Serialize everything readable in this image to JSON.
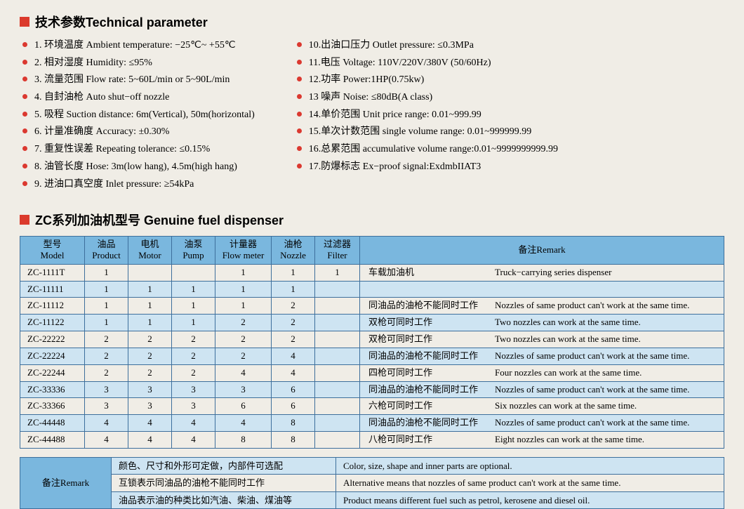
{
  "colors": {
    "accent_red": "#db3a2c",
    "header_blue": "#7ab7de",
    "row_alt_blue": "#cee4f2",
    "border_blue": "#3d6f9c",
    "page_bg": "#f0ede6"
  },
  "sections": {
    "tech_param_title": "技术参数Technical parameter",
    "dispenser_title": "ZC系列加油机型号 Genuine fuel dispenser"
  },
  "tech_params_left": [
    "1. 环境温度 Ambient temperature: −25℃~ +55℃",
    "2. 相对湿度 Humidity: ≤95%",
    "3. 流量范围 Flow rate: 5~60L/min or 5~90L/min",
    "4. 自封油枪 Auto shut−off nozzle",
    "5. 吸程 Suction distance: 6m(Vertical), 50m(horizontal)",
    "6. 计量准确度 Accuracy: ±0.30%",
    "7. 重复性误差 Repeating tolerance: ≤0.15%",
    "8. 油管长度 Hose: 3m(low hang), 4.5m(high hang)",
    "9. 进油口真空度 Inlet pressure: ≥54kPa"
  ],
  "tech_params_right": [
    "10.出油口压力 Outlet pressure: ≤0.3MPa",
    "11.电压 Voltage: 110V/220V/380V (50/60Hz)",
    "12.功率 Power:1HP(0.75kw)",
    "13 噪声 Noise: ≤80dB(A class)",
    "14.单价范围 Unit price range: 0.01~999.99",
    "15.单次计数范围 single volume range: 0.01~999999.99",
    "16.总累范围 accumulative volume range:0.01~9999999999.99",
    "17.防爆标志 Ex−proof signal:ExdmbIIAT3"
  ],
  "table_headers": [
    {
      "cn": "型号",
      "en": "Model"
    },
    {
      "cn": "油品",
      "en": "Product"
    },
    {
      "cn": "电机",
      "en": "Motor"
    },
    {
      "cn": "油泵",
      "en": "Pump"
    },
    {
      "cn": "计量器",
      "en": "Flow meter"
    },
    {
      "cn": "油枪",
      "en": "Nozzle"
    },
    {
      "cn": "过滤器",
      "en": "Filter"
    },
    {
      "cn": "",
      "en": "备注Remark"
    }
  ],
  "table_rows": [
    {
      "model": "ZC-1111T",
      "product": "1",
      "motor": "",
      "pump": "",
      "flow": "1",
      "nozzle": "1",
      "filter": "1",
      "remark_cn": "车载加油机",
      "remark_en": "Truck−carrying series dispenser"
    },
    {
      "model": "ZC-11111",
      "product": "1",
      "motor": "1",
      "pump": "1",
      "flow": "1",
      "nozzle": "1",
      "filter": "",
      "remark_cn": "",
      "remark_en": ""
    },
    {
      "model": "ZC-11112",
      "product": "1",
      "motor": "1",
      "pump": "1",
      "flow": "1",
      "nozzle": "2",
      "filter": "",
      "remark_cn": "同油品的油枪不能同时工作",
      "remark_en": "Nozzles of same product can't work at the same time."
    },
    {
      "model": "ZC-11122",
      "product": "1",
      "motor": "1",
      "pump": "1",
      "flow": "2",
      "nozzle": "2",
      "filter": "",
      "remark_cn": "双枪可同时工作",
      "remark_en": "Two nozzles can work at the same time."
    },
    {
      "model": "ZC-22222",
      "product": "2",
      "motor": "2",
      "pump": "2",
      "flow": "2",
      "nozzle": "2",
      "filter": "",
      "remark_cn": "双枪可同时工作",
      "remark_en": "Two nozzles can work at the same time."
    },
    {
      "model": "ZC-22224",
      "product": "2",
      "motor": "2",
      "pump": "2",
      "flow": "2",
      "nozzle": "4",
      "filter": "",
      "remark_cn": "同油品的油枪不能同时工作",
      "remark_en": "Nozzles of same product can't work at the same time."
    },
    {
      "model": "ZC-22244",
      "product": "2",
      "motor": "2",
      "pump": "2",
      "flow": "4",
      "nozzle": "4",
      "filter": "",
      "remark_cn": "四枪可同时工作",
      "remark_en": "Four nozzles can work at the same time."
    },
    {
      "model": "ZC-33336",
      "product": "3",
      "motor": "3",
      "pump": "3",
      "flow": "3",
      "nozzle": "6",
      "filter": "",
      "remark_cn": "同油品的油枪不能同时工作",
      "remark_en": "Nozzles of same product can't work at the same time."
    },
    {
      "model": "ZC-33366",
      "product": "3",
      "motor": "3",
      "pump": "3",
      "flow": "6",
      "nozzle": "6",
      "filter": "",
      "remark_cn": "六枪可同时工作",
      "remark_en": "Six nozzles can work at the same time."
    },
    {
      "model": "ZC-44448",
      "product": "4",
      "motor": "4",
      "pump": "4",
      "flow": "4",
      "nozzle": "8",
      "filter": "",
      "remark_cn": "同油品的油枪不能同时工作",
      "remark_en": "Nozzles of same product can't work at the same time."
    },
    {
      "model": "ZC-44488",
      "product": "4",
      "motor": "4",
      "pump": "4",
      "flow": "8",
      "nozzle": "8",
      "filter": "",
      "remark_cn": "八枪可同时工作",
      "remark_en": "Eight nozzles can work at the same time."
    }
  ],
  "remark_table": {
    "header": "备注Remark",
    "rows": [
      {
        "cn": "颜色、尺寸和外形可定做，内部件可选配",
        "en": "Color, size, shape and inner parts are optional."
      },
      {
        "cn": "互锁表示同油品的油枪不能同时工作",
        "en": "Alternative means that nozzles of same product can't work at the same time."
      },
      {
        "cn": "油品表示油的种类比如汽油、柴油、煤油等",
        "en": "Product means different fuel such as petrol, kerosene and diesel oil."
      }
    ]
  }
}
